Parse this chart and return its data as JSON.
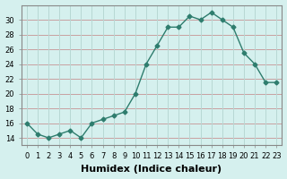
{
  "xlabel": "Humidex (Indice chaleur)",
  "x": [
    0,
    1,
    2,
    3,
    4,
    5,
    6,
    7,
    8,
    9,
    10,
    11,
    12,
    13,
    14,
    15,
    16,
    17,
    18,
    19,
    20,
    21,
    22,
    23
  ],
  "y": [
    16,
    14.5,
    14,
    14.5,
    15,
    14,
    16,
    16.5,
    17,
    17.5,
    20,
    24,
    26.5,
    29,
    29,
    30.5,
    30,
    31,
    30,
    29,
    25.5,
    24,
    21.5,
    21.5
  ],
  "line_color": "#2e7d6e",
  "marker": "D",
  "marker_size": 2.5,
  "bg_color": "#d5f0ee",
  "grid_color_h": "#c8a0a0",
  "grid_color_v": "#b8d8d4",
  "ylim": [
    13,
    32
  ],
  "yticks": [
    14,
    16,
    18,
    20,
    22,
    24,
    26,
    28,
    30
  ],
  "xlim": [
    -0.5,
    23.5
  ],
  "figsize": [
    3.2,
    2.0
  ],
  "dpi": 100,
  "tick_fontsize": 6,
  "label_fontsize": 8
}
